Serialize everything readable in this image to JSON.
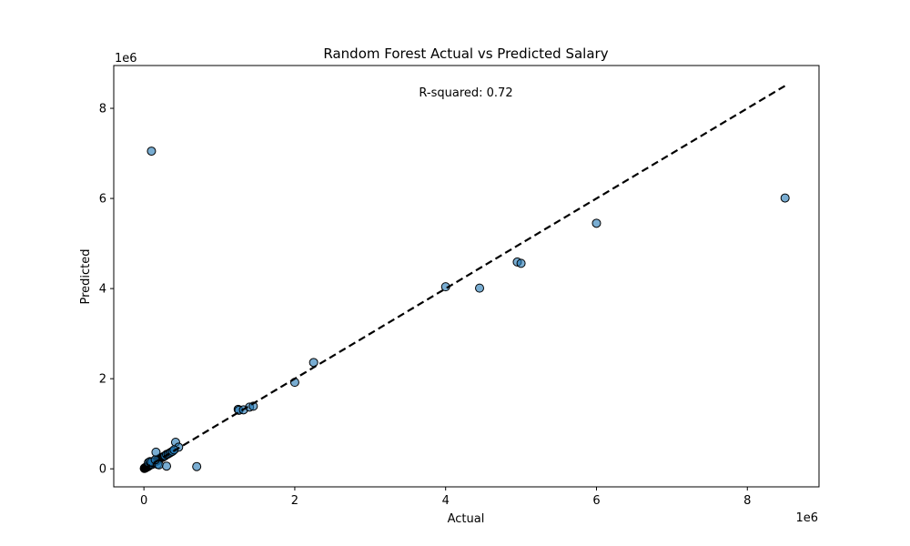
{
  "chart_data": {
    "type": "scatter",
    "title": "Random Forest Actual vs Predicted Salary",
    "xlabel": "Actual",
    "ylabel": "Predicted",
    "x_offset_label": "1e6",
    "y_offset_label": "1e6",
    "xlim": [
      -400000,
      8950000
    ],
    "ylim": [
      -400000,
      8950000
    ],
    "x_ticks": [
      0,
      2000000,
      4000000,
      6000000,
      8000000
    ],
    "x_tick_labels": [
      "0",
      "2",
      "4",
      "6",
      "8"
    ],
    "y_ticks": [
      0,
      2000000,
      4000000,
      6000000,
      8000000
    ],
    "y_tick_labels": [
      "0",
      "2",
      "4",
      "6",
      "8"
    ],
    "annotation": "R-squared: 0.72",
    "grid": false,
    "colors": {
      "point_fill": "#1f77b4",
      "point_edge": "#000000",
      "reference_line": "#000000"
    },
    "reference_line": {
      "x": [
        0,
        8500000
      ],
      "y": [
        0,
        8500000
      ],
      "style": "dashed"
    },
    "points": [
      {
        "x": 5000,
        "y": 10000
      },
      {
        "x": 10000,
        "y": 20000
      },
      {
        "x": 15000,
        "y": 12000
      },
      {
        "x": 20000,
        "y": 30000
      },
      {
        "x": 25000,
        "y": 25000
      },
      {
        "x": 30000,
        "y": 40000
      },
      {
        "x": 35000,
        "y": 35000
      },
      {
        "x": 40000,
        "y": 50000
      },
      {
        "x": 45000,
        "y": 45000
      },
      {
        "x": 50000,
        "y": 60000
      },
      {
        "x": 55000,
        "y": 50000
      },
      {
        "x": 60000,
        "y": 70000
      },
      {
        "x": 65000,
        "y": 65000
      },
      {
        "x": 70000,
        "y": 80000
      },
      {
        "x": 75000,
        "y": 75000
      },
      {
        "x": 80000,
        "y": 90000
      },
      {
        "x": 85000,
        "y": 85000
      },
      {
        "x": 90000,
        "y": 100000
      },
      {
        "x": 95000,
        "y": 110000
      },
      {
        "x": 100000,
        "y": 120000
      },
      {
        "x": 110000,
        "y": 100000
      },
      {
        "x": 120000,
        "y": 130000
      },
      {
        "x": 130000,
        "y": 140000
      },
      {
        "x": 140000,
        "y": 150000
      },
      {
        "x": 150000,
        "y": 160000
      },
      {
        "x": 160000,
        "y": 180000
      },
      {
        "x": 170000,
        "y": 170000
      },
      {
        "x": 180000,
        "y": 190000
      },
      {
        "x": 190000,
        "y": 210000
      },
      {
        "x": 200000,
        "y": 220000
      },
      {
        "x": 210000,
        "y": 230000
      },
      {
        "x": 220000,
        "y": 240000
      },
      {
        "x": 230000,
        "y": 250000
      },
      {
        "x": 240000,
        "y": 250000
      },
      {
        "x": 250000,
        "y": 260000
      },
      {
        "x": 260000,
        "y": 270000
      },
      {
        "x": 270000,
        "y": 280000
      },
      {
        "x": 280000,
        "y": 290000
      },
      {
        "x": 300000,
        "y": 320000
      },
      {
        "x": 320000,
        "y": 330000
      },
      {
        "x": 340000,
        "y": 350000
      },
      {
        "x": 360000,
        "y": 370000
      },
      {
        "x": 380000,
        "y": 390000
      },
      {
        "x": 60000,
        "y": 140000
      },
      {
        "x": 80000,
        "y": 160000
      },
      {
        "x": 100000,
        "y": 150000
      },
      {
        "x": 180000,
        "y": 100000
      },
      {
        "x": 200000,
        "y": 90000
      },
      {
        "x": 150000,
        "y": 200000
      },
      {
        "x": 160000,
        "y": 370000
      },
      {
        "x": 300000,
        "y": 60000
      },
      {
        "x": 420000,
        "y": 590000
      },
      {
        "x": 460000,
        "y": 480000
      },
      {
        "x": 400000,
        "y": 420000
      },
      {
        "x": 700000,
        "y": 50000
      },
      {
        "x": 100000,
        "y": 7050000
      },
      {
        "x": 1250000,
        "y": 1320000
      },
      {
        "x": 1260000,
        "y": 1300000
      },
      {
        "x": 1320000,
        "y": 1310000
      },
      {
        "x": 1400000,
        "y": 1370000
      },
      {
        "x": 1450000,
        "y": 1390000
      },
      {
        "x": 2000000,
        "y": 1920000
      },
      {
        "x": 2250000,
        "y": 2360000
      },
      {
        "x": 4000000,
        "y": 4040000
      },
      {
        "x": 4450000,
        "y": 4010000
      },
      {
        "x": 4950000,
        "y": 4590000
      },
      {
        "x": 5000000,
        "y": 4560000
      },
      {
        "x": 6000000,
        "y": 5450000
      },
      {
        "x": 8500000,
        "y": 6010000
      }
    ]
  }
}
